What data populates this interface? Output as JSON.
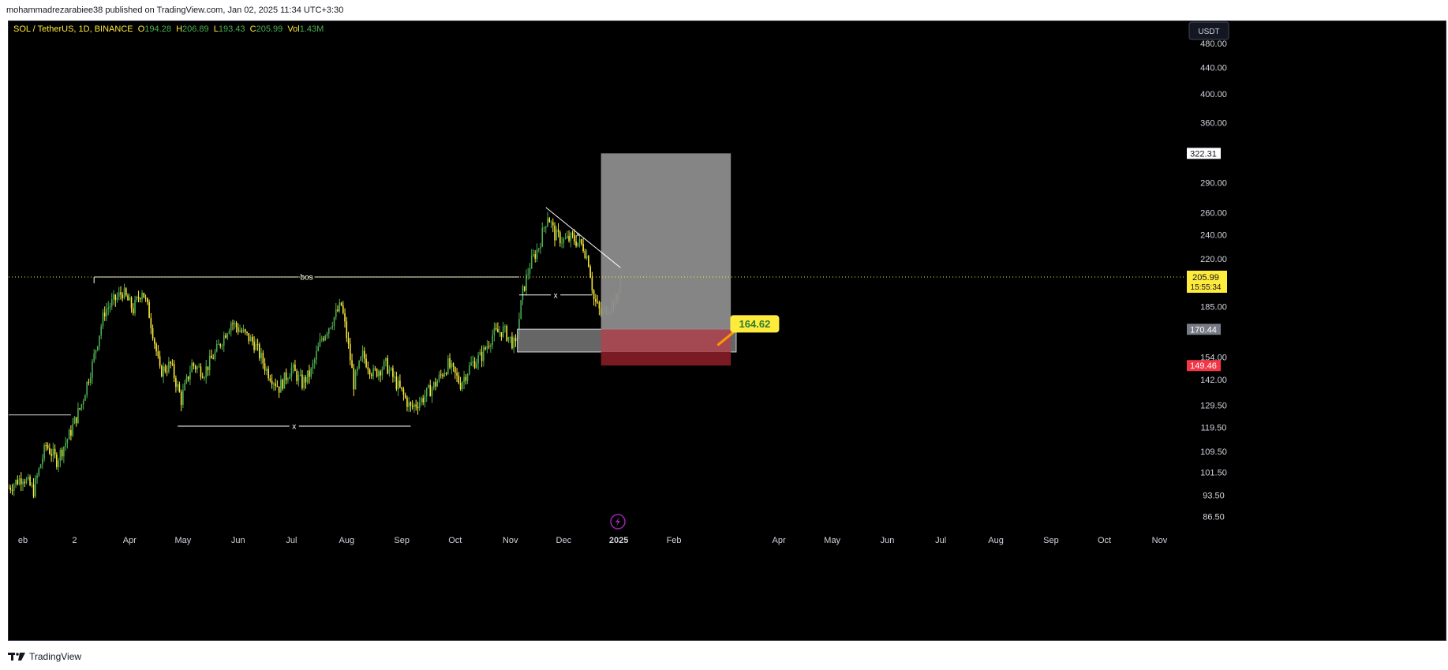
{
  "publish_line": "mohammadrezarabiee38 published on TradingView.com, Jan 02, 2025 11:34 UTC+3:30",
  "footer_brand": "TradingView",
  "colors": {
    "background": "#000000",
    "up": "#4caf50",
    "down": "#ffeb3b",
    "axis_text": "#d1d4dc",
    "price_line": "#ffeb3b",
    "target_box": "#8c8c8c",
    "stop_box": "#a84850",
    "stop_box_dark": "#7a1a22",
    "demand_zone": "#787878",
    "stop_label": "#f23645"
  },
  "chart_data": {
    "type": "candlestick",
    "symbol_pair": "SOL / TetherUS",
    "interval": "1D",
    "exchange": "BINANCE",
    "legend": {
      "o_label": "O",
      "o_value": "194.28",
      "h_label": "H",
      "h_value": "206.89",
      "l_label": "L",
      "l_value": "193.43",
      "c_label": "C",
      "c_value": "205.99",
      "vol_label": "Vol",
      "vol_value": "1.43M"
    },
    "price_scale": {
      "currency": "USDT",
      "log_scale": true,
      "ticks": [
        "480.00",
        "440.00",
        "400.00",
        "360.00",
        "290.00",
        "260.00",
        "240.00",
        "220.00",
        "185.00",
        "154.00",
        "142.00",
        "129.50",
        "119.50",
        "109.50",
        "101.50",
        "93.50",
        "86.50"
      ],
      "tick_values": [
        480,
        440,
        400,
        360,
        290,
        260,
        240,
        220,
        185,
        154,
        142,
        129.5,
        119.5,
        109.5,
        101.5,
        93.5,
        86.5
      ]
    },
    "time_axis": {
      "labels": [
        "eb",
        "2",
        "Apr",
        "May",
        "Jun",
        "Jul",
        "Aug",
        "Sep",
        "Oct",
        "Nov",
        "Dec",
        "2025",
        "Feb",
        "Apr",
        "May",
        "Jun",
        "Jul",
        "Aug",
        "Sep",
        "Oct",
        "Nov"
      ],
      "label_dates": [
        "2024-02-01",
        "2024-03-01",
        "2024-04-01",
        "2024-05-01",
        "2024-06-01",
        "2024-07-01",
        "2024-08-01",
        "2024-09-01",
        "2024-10-01",
        "2024-11-01",
        "2024-12-01",
        "2025-01-01",
        "2025-02-01",
        "2025-04-01",
        "2025-05-01",
        "2025-06-01",
        "2025-07-01",
        "2025-08-01",
        "2025-09-01",
        "2025-10-01",
        "2025-11-01"
      ],
      "bold_labels": [
        "2025"
      ]
    },
    "range": {
      "start_date": "2024-01-24",
      "end_date": "2025-11-15",
      "y_min": 83,
      "y_max": 520
    },
    "price_series": [
      [
        "2024-01-24",
        96
      ],
      [
        "2024-02-01",
        100
      ],
      [
        "2024-02-07",
        95
      ],
      [
        "2024-02-14",
        112
      ],
      [
        "2024-02-20",
        106
      ],
      [
        "2024-02-27",
        116
      ],
      [
        "2024-03-05",
        130
      ],
      [
        "2024-03-11",
        150
      ],
      [
        "2024-03-18",
        182
      ],
      [
        "2024-03-24",
        190
      ],
      [
        "2024-03-28",
        195
      ],
      [
        "2024-04-03",
        183
      ],
      [
        "2024-04-08",
        197
      ],
      [
        "2024-04-12",
        180
      ],
      [
        "2024-04-18",
        146
      ],
      [
        "2024-04-24",
        150
      ],
      [
        "2024-04-30",
        132
      ],
      [
        "2024-05-06",
        150
      ],
      [
        "2024-05-13",
        146
      ],
      [
        "2024-05-20",
        158
      ],
      [
        "2024-05-28",
        175
      ],
      [
        "2024-06-02",
        170
      ],
      [
        "2024-06-10",
        162
      ],
      [
        "2024-06-17",
        147
      ],
      [
        "2024-06-24",
        138
      ],
      [
        "2024-07-01",
        148
      ],
      [
        "2024-07-07",
        140
      ],
      [
        "2024-07-12",
        146
      ],
      [
        "2024-07-18",
        165
      ],
      [
        "2024-07-25",
        178
      ],
      [
        "2024-07-29",
        186
      ],
      [
        "2024-08-05",
        140
      ],
      [
        "2024-08-10",
        155
      ],
      [
        "2024-08-16",
        145
      ],
      [
        "2024-08-23",
        150
      ],
      [
        "2024-08-29",
        140
      ],
      [
        "2024-09-06",
        128
      ],
      [
        "2024-09-12",
        132
      ],
      [
        "2024-09-20",
        140
      ],
      [
        "2024-09-27",
        150
      ],
      [
        "2024-10-04",
        140
      ],
      [
        "2024-10-10",
        150
      ],
      [
        "2024-10-16",
        155
      ],
      [
        "2024-10-22",
        167
      ],
      [
        "2024-10-28",
        170
      ],
      [
        "2024-11-04",
        160
      ],
      [
        "2024-11-08",
        195
      ],
      [
        "2024-11-12",
        215
      ],
      [
        "2024-11-17",
        230
      ],
      [
        "2024-11-22",
        258
      ],
      [
        "2024-11-26",
        240
      ],
      [
        "2024-12-01",
        235
      ],
      [
        "2024-12-06",
        237
      ],
      [
        "2024-12-12",
        230
      ],
      [
        "2024-12-15",
        218
      ],
      [
        "2024-12-18",
        190
      ],
      [
        "2024-12-22",
        180
      ],
      [
        "2024-12-27",
        186
      ],
      [
        "2024-12-31",
        190
      ],
      [
        "2025-01-02",
        205.99
      ]
    ],
    "current_price": {
      "value": 205.99,
      "label": "205.99",
      "countdown": "15:55:34"
    },
    "annotations": {
      "bos_label": "bos",
      "bos_level": 206,
      "bos_start_date": "2024-03-12",
      "bos_end_date": "2024-11-06",
      "range_low_mark": "x",
      "range_low_level": 120,
      "range_low_start_date": "2024-04-28",
      "range_low_end_date": "2024-09-06",
      "pullback_mark": "x",
      "pullback_level": 193,
      "pullback_start_date": "2024-11-06",
      "pullback_end_date": "2024-12-17",
      "trendline_start": [
        "2024-11-21",
        265
      ],
      "trendline_end": [
        "2025-01-02",
        213
      ],
      "trendline_mark": "×",
      "trendline_mark_point": [
        "2024-12-09",
        240
      ],
      "prior_level": 125,
      "prior_level_start_date": "2024-01-24",
      "prior_level_end_date": "2024-02-28"
    },
    "position_tool": {
      "entry_start_date": "2024-12-22",
      "entry_end_date": "2025-03-05",
      "target_price": 322.31,
      "entry_price": 170.44,
      "stop_price": 149.46,
      "target_label": "322.31",
      "entry_label": "170.44",
      "stop_label": "149.46"
    },
    "demand_zone": {
      "start_date": "2024-11-05",
      "end_date": "2025-03-08",
      "top": 170.5,
      "bottom": 157
    },
    "callout": {
      "label": "164.62",
      "value": 164.62,
      "date": "2025-03-02"
    }
  },
  "icons": {
    "lightning": "lightning-icon",
    "logo": "tradingview-logo-icon"
  }
}
